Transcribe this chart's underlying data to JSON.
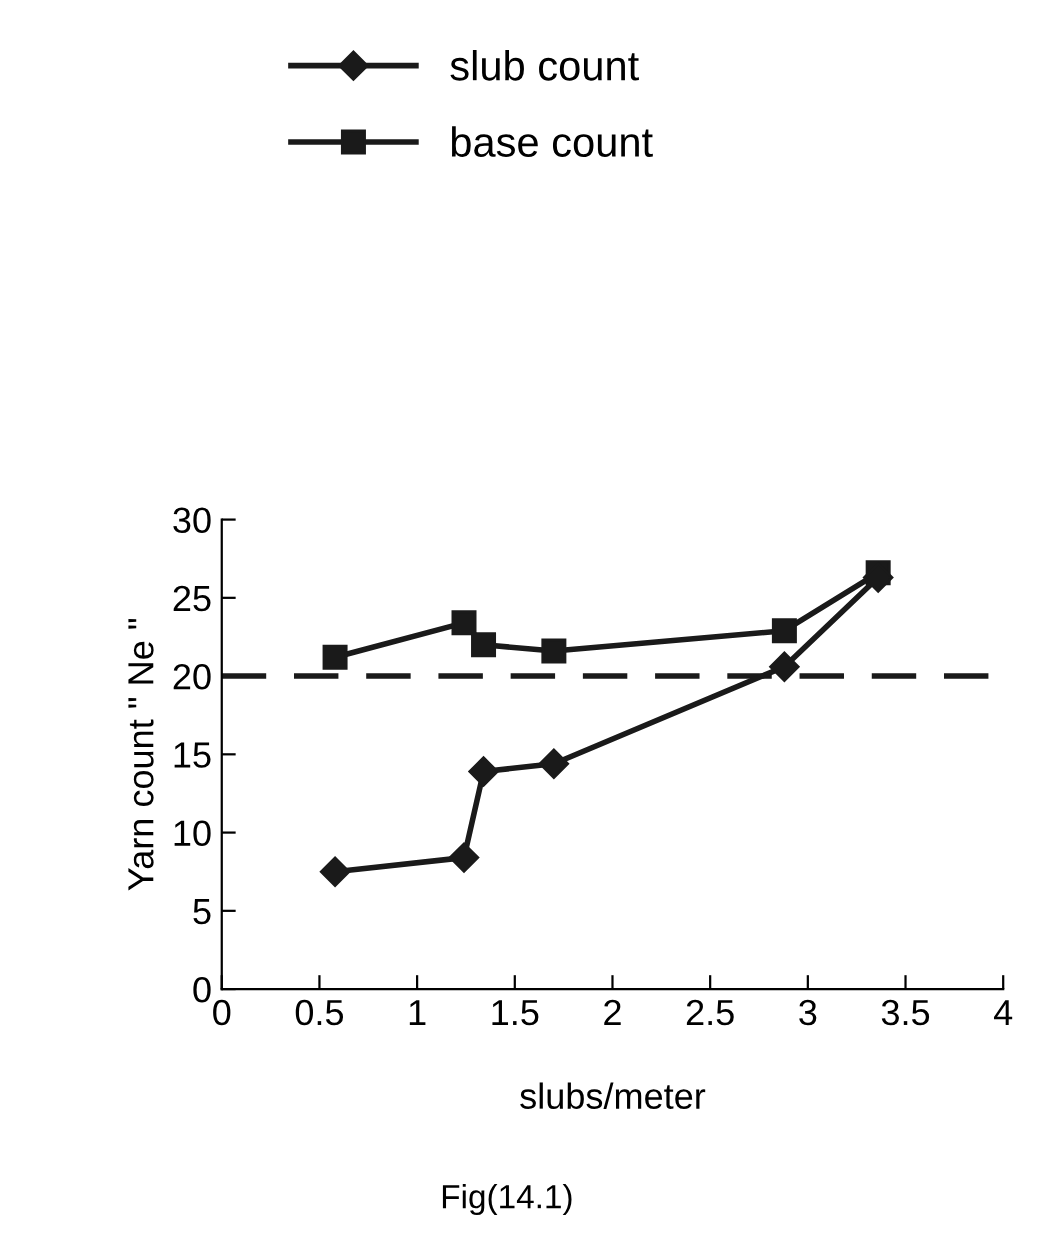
{
  "chart_data": {
    "type": "line",
    "xlabel": "slubs/meter",
    "ylabel": "Yarn count \" Ne \"",
    "series": [
      {
        "name": "slub count",
        "color": "#1a1a1a",
        "marker": "diamond",
        "x": [
          0.58,
          1.24,
          1.34,
          1.7,
          2.88,
          3.36
        ],
        "values": [
          7.5,
          8.4,
          13.9,
          14.4,
          20.6,
          26.3
        ]
      },
      {
        "name": "base count",
        "color": "#1a1a1a",
        "marker": "square",
        "x": [
          0.58,
          1.24,
          1.34,
          1.7,
          2.88,
          3.36
        ],
        "values": [
          21.2,
          23.4,
          22.0,
          21.6,
          22.9,
          26.6
        ]
      }
    ],
    "xlim": [
      0,
      4
    ],
    "xticks": [
      0,
      0.5,
      1,
      1.5,
      2,
      2.5,
      3,
      3.5,
      4
    ],
    "ylim": [
      0,
      30
    ],
    "yticks": [
      0,
      5,
      10,
      15,
      20,
      25,
      30
    ],
    "ref_lines": [
      {
        "axis": "y",
        "value": 20,
        "color": "#1a1a1a",
        "line_style": "dashed"
      }
    ],
    "legend": "top left",
    "grid": false,
    "line_style": "solid",
    "annotations": [
      "Fig(14.1)"
    ]
  }
}
